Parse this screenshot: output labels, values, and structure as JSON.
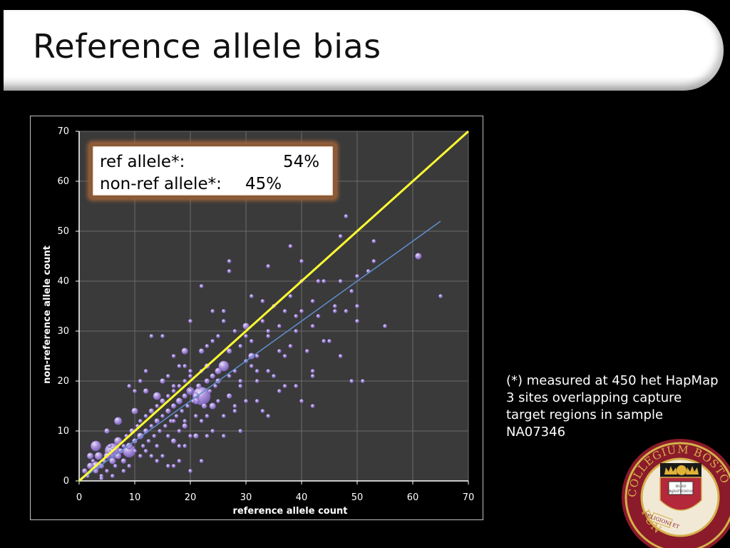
{
  "slide": {
    "title": "Reference allele bias",
    "note": "(*) measured at 450 het HapMap 3 sites overlapping capture target regions in sample NA07346"
  },
  "legend": {
    "ref_label": "ref allele*:",
    "ref_value": "54%",
    "nonref_label": "non-ref allele*:",
    "nonref_value": "45%"
  },
  "seal": {
    "text_top": "COLLEGIUM BOSTO",
    "text_left": "FUN",
    "banner": "RELIGIONI ET",
    "book_text": "αι εν αριστευειν"
  },
  "colors": {
    "plot_bg": "#3a3a3a",
    "grid": "#6a6a6a",
    "bubble": "#b49ae6",
    "diagonal": "#ffff33",
    "fit": "#5f8fd2",
    "legend_border": "#8a5a37"
  },
  "chart_data": {
    "type": "scatter",
    "title": "",
    "xlabel": "reference allele count",
    "ylabel": "non-reference allele count",
    "xlim": [
      0,
      70
    ],
    "ylim": [
      0,
      70
    ],
    "xticks": [
      0,
      10,
      20,
      30,
      40,
      50,
      60,
      70
    ],
    "yticks": [
      0,
      10,
      20,
      30,
      40,
      50,
      60,
      70
    ],
    "grid": true,
    "legend": "top-left",
    "reference_line": {
      "from": [
        0,
        0
      ],
      "to": [
        70,
        70
      ]
    },
    "fit_line": {
      "from": [
        0,
        0
      ],
      "to": [
        65,
        52
      ]
    },
    "points": [
      [
        0.5,
        0.5,
        2
      ],
      [
        1,
        2,
        4
      ],
      [
        1.5,
        1,
        3
      ],
      [
        2,
        3,
        5
      ],
      [
        2.5,
        4,
        3
      ],
      [
        3,
        2,
        4
      ],
      [
        3.5,
        5,
        6
      ],
      [
        4,
        1,
        3
      ],
      [
        4,
        3,
        4
      ],
      [
        4.5,
        4,
        3
      ],
      [
        5,
        5,
        5
      ],
      [
        5,
        2,
        3
      ],
      [
        5.5,
        7,
        3
      ],
      [
        6,
        6,
        4
      ],
      [
        6,
        4,
        5
      ],
      [
        6.5,
        3,
        3
      ],
      [
        7,
        8,
        6
      ],
      [
        7,
        5,
        5
      ],
      [
        7.5,
        6,
        4
      ],
      [
        8,
        7,
        3
      ],
      [
        8,
        4,
        4
      ],
      [
        8.5,
        9,
        3
      ],
      [
        9,
        7,
        5
      ],
      [
        9,
        3,
        3
      ],
      [
        9.5,
        10,
        4
      ],
      [
        10,
        8,
        4
      ],
      [
        10,
        6,
        3
      ],
      [
        10.5,
        11,
        3
      ],
      [
        11,
        9,
        5
      ],
      [
        11,
        12,
        3
      ],
      [
        11.5,
        7,
        3
      ],
      [
        12,
        10,
        4
      ],
      [
        12,
        13,
        3
      ],
      [
        12.5,
        8,
        3
      ],
      [
        13,
        11,
        3
      ],
      [
        13,
        14,
        4
      ],
      [
        13.5,
        9,
        3
      ],
      [
        14,
        12,
        4
      ],
      [
        14,
        15,
        3
      ],
      [
        14.5,
        10,
        3
      ],
      [
        15,
        13,
        3
      ],
      [
        15,
        16,
        4
      ],
      [
        15.5,
        11,
        3
      ],
      [
        16,
        14,
        4
      ],
      [
        16,
        17,
        3
      ],
      [
        16.5,
        12,
        3
      ],
      [
        17,
        15,
        4
      ],
      [
        17,
        18,
        3
      ],
      [
        17.5,
        13,
        3
      ],
      [
        18,
        16,
        5
      ],
      [
        18,
        19,
        3
      ],
      [
        18.5,
        14,
        3
      ],
      [
        19,
        17,
        4
      ],
      [
        19,
        20,
        3
      ],
      [
        19.5,
        15,
        3
      ],
      [
        20,
        18,
        4
      ],
      [
        20,
        21,
        3
      ],
      [
        20.5,
        16,
        3
      ],
      [
        21,
        17,
        5
      ],
      [
        21.5,
        19,
        4
      ],
      [
        22,
        17,
        14
      ],
      [
        22.5,
        15,
        4
      ],
      [
        23,
        20,
        4
      ],
      [
        23,
        23,
        4
      ],
      [
        23.5,
        18,
        3
      ],
      [
        24,
        21,
        4
      ],
      [
        24,
        15,
        5
      ],
      [
        24.5,
        19,
        3
      ],
      [
        25,
        22,
        5
      ],
      [
        25,
        20,
        4
      ],
      [
        26,
        23,
        8
      ],
      [
        27,
        17,
        4
      ],
      [
        25,
        29,
        3
      ],
      [
        3,
        7,
        8
      ],
      [
        6,
        6,
        12
      ],
      [
        9,
        6,
        10
      ],
      [
        3,
        3,
        7
      ],
      [
        2,
        5,
        5
      ],
      [
        7,
        12,
        6
      ],
      [
        5,
        10,
        4
      ],
      [
        10,
        14,
        5
      ],
      [
        12,
        18,
        4
      ],
      [
        14,
        17,
        6
      ],
      [
        15,
        20,
        4
      ],
      [
        19,
        26,
        5
      ],
      [
        20,
        18,
        6
      ],
      [
        21,
        16,
        5
      ],
      [
        24,
        28,
        3
      ],
      [
        22,
        26,
        4
      ],
      [
        20,
        32,
        3
      ],
      [
        22,
        39,
        3
      ],
      [
        24,
        34,
        3
      ],
      [
        26,
        34,
        3
      ],
      [
        27,
        44,
        3
      ],
      [
        27,
        42,
        3
      ],
      [
        29,
        27,
        3
      ],
      [
        30,
        24,
        3
      ],
      [
        30,
        31,
        5
      ],
      [
        31,
        25,
        5
      ],
      [
        31,
        37,
        3
      ],
      [
        32,
        25,
        3
      ],
      [
        32,
        22,
        3
      ],
      [
        32,
        20,
        3
      ],
      [
        33,
        36,
        3
      ],
      [
        34,
        43,
        3
      ],
      [
        34,
        30,
        3
      ],
      [
        34,
        29,
        3
      ],
      [
        35,
        35,
        3
      ],
      [
        36,
        31,
        3
      ],
      [
        36,
        26,
        3
      ],
      [
        37,
        34,
        3
      ],
      [
        37,
        25,
        3
      ],
      [
        38,
        27,
        3
      ],
      [
        38,
        37,
        3
      ],
      [
        38,
        47,
        3
      ],
      [
        39,
        30,
        3
      ],
      [
        39,
        33,
        3
      ],
      [
        40,
        34,
        3
      ],
      [
        40,
        44,
        3
      ],
      [
        40,
        40,
        3
      ],
      [
        41,
        26,
        3
      ],
      [
        42,
        36,
        3
      ],
      [
        42,
        31,
        3
      ],
      [
        42,
        21,
        3
      ],
      [
        42,
        22,
        3
      ],
      [
        42,
        15,
        3
      ],
      [
        43,
        33,
        3
      ],
      [
        43,
        40,
        3
      ],
      [
        44,
        40,
        3
      ],
      [
        44,
        28,
        3
      ],
      [
        45,
        28,
        3
      ],
      [
        46,
        35,
        3
      ],
      [
        46,
        34,
        3
      ],
      [
        47,
        49,
        3
      ],
      [
        47,
        25,
        3
      ],
      [
        47,
        40,
        3
      ],
      [
        48,
        53,
        3
      ],
      [
        48,
        34,
        3
      ],
      [
        49,
        38,
        3
      ],
      [
        49,
        20,
        3
      ],
      [
        50,
        41,
        3
      ],
      [
        50,
        35,
        3
      ],
      [
        50,
        32,
        3
      ],
      [
        51,
        20,
        3
      ],
      [
        52,
        42,
        3
      ],
      [
        53,
        48,
        3
      ],
      [
        53,
        44,
        3
      ],
      [
        55,
        31,
        3
      ],
      [
        61,
        45,
        5
      ],
      [
        65,
        37,
        3
      ],
      [
        31,
        23,
        3
      ],
      [
        30,
        16,
        3
      ],
      [
        33,
        14,
        3
      ],
      [
        34,
        13,
        3
      ],
      [
        36,
        18,
        3
      ],
      [
        35,
        21,
        3
      ],
      [
        37,
        19,
        3
      ],
      [
        39,
        19,
        3
      ],
      [
        40,
        16,
        3
      ],
      [
        29,
        19,
        3
      ],
      [
        27,
        21,
        3
      ],
      [
        26,
        13,
        3
      ],
      [
        28,
        14,
        3
      ],
      [
        29,
        10,
        3
      ],
      [
        28,
        15,
        3
      ],
      [
        25,
        16,
        3
      ],
      [
        26,
        9,
        3
      ],
      [
        24,
        10,
        3
      ],
      [
        23,
        9,
        3
      ],
      [
        21,
        9,
        4
      ],
      [
        19,
        11,
        4
      ],
      [
        18,
        10,
        3
      ],
      [
        17,
        8,
        4
      ],
      [
        16,
        9,
        3
      ],
      [
        15,
        5,
        3
      ],
      [
        14,
        7,
        3
      ],
      [
        13,
        29,
        3
      ],
      [
        15,
        29,
        3
      ],
      [
        17,
        25,
        3
      ],
      [
        18,
        23,
        3
      ],
      [
        9,
        19,
        3
      ],
      [
        10,
        18,
        3
      ],
      [
        11,
        20,
        3
      ],
      [
        12,
        22,
        3
      ],
      [
        16,
        21,
        3
      ],
      [
        17,
        19,
        3
      ],
      [
        19,
        23,
        3
      ],
      [
        20,
        22,
        3
      ],
      [
        18,
        4,
        3
      ],
      [
        19,
        7,
        3
      ],
      [
        17,
        3,
        3
      ],
      [
        20,
        9,
        3
      ],
      [
        14,
        4,
        3
      ],
      [
        12,
        6,
        3
      ],
      [
        11,
        5,
        3
      ],
      [
        8,
        2,
        3
      ],
      [
        6,
        1,
        3
      ],
      [
        4,
        0.5,
        3
      ],
      [
        13,
        5,
        3
      ],
      [
        16,
        3,
        3
      ],
      [
        20,
        2,
        3
      ],
      [
        22,
        4,
        3
      ],
      [
        23,
        13,
        3
      ],
      [
        22,
        12,
        3
      ],
      [
        21,
        13,
        3
      ],
      [
        27,
        26,
        4
      ],
      [
        28,
        30,
        3
      ],
      [
        26,
        32,
        3
      ],
      [
        23,
        27,
        3
      ],
      [
        22,
        22,
        3
      ],
      [
        33,
        32,
        3
      ],
      [
        30,
        29,
        3
      ],
      [
        34,
        22,
        3
      ],
      [
        32,
        16,
        3
      ],
      [
        31,
        28,
        3
      ],
      [
        29,
        20,
        3
      ],
      [
        28,
        22,
        3
      ],
      [
        19,
        12,
        3
      ],
      [
        18,
        7,
        3
      ],
      [
        17,
        12,
        3
      ]
    ]
  }
}
